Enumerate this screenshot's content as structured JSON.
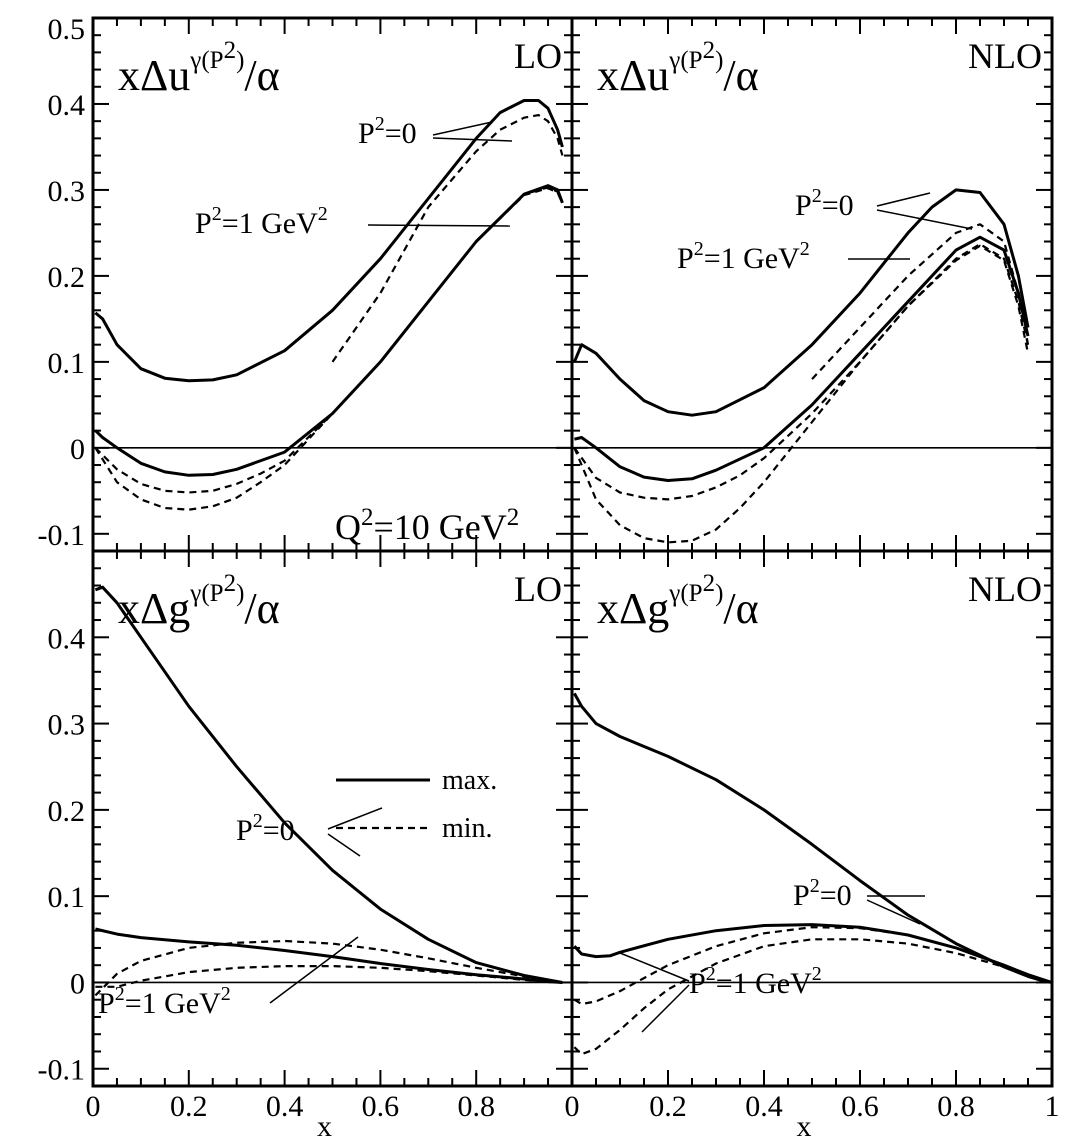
{
  "chart_data": [
    {
      "panel": "top-left",
      "type": "line",
      "title": {
        "base": "xΔu",
        "sup": "γ(P",
        "sup2": "2",
        "supclose": ")",
        "tail": "/α"
      },
      "order_label": "LO",
      "extra_label": {
        "base": "Q",
        "sup": "2",
        "tail": "=10 GeV",
        "sup2": "2"
      },
      "ylim": [
        -0.12,
        0.5
      ],
      "xlim": [
        0,
        1
      ],
      "yticks": [
        "0.5",
        "0.4",
        "0.3",
        "0.2",
        "0.1",
        "0",
        "-0.1"
      ],
      "annotations": [
        {
          "text": "P",
          "sup": "2",
          "tail": "=0",
          "sup2": ""
        },
        {
          "text": "P",
          "sup": "2",
          "tail": "=1 GeV",
          "sup2": "2"
        }
      ],
      "series": [
        {
          "style": "solid",
          "x": [
            0.005,
            0.02,
            0.05,
            0.1,
            0.15,
            0.2,
            0.25,
            0.3,
            0.4,
            0.5,
            0.6,
            0.7,
            0.8,
            0.85,
            0.9,
            0.93,
            0.95,
            0.97,
            0.98
          ],
          "y": [
            0.157,
            0.15,
            0.12,
            0.092,
            0.081,
            0.078,
            0.079,
            0.085,
            0.113,
            0.16,
            0.22,
            0.29,
            0.36,
            0.39,
            0.404,
            0.404,
            0.395,
            0.37,
            0.35
          ]
        },
        {
          "style": "dashed",
          "x": [
            0.5,
            0.6,
            0.65,
            0.7,
            0.8,
            0.85,
            0.9,
            0.93,
            0.95,
            0.97,
            0.98
          ],
          "y": [
            0.1,
            0.18,
            0.23,
            0.28,
            0.345,
            0.37,
            0.384,
            0.387,
            0.38,
            0.36,
            0.34
          ]
        },
        {
          "style": "solid",
          "x": [
            0.005,
            0.02,
            0.05,
            0.1,
            0.15,
            0.2,
            0.25,
            0.3,
            0.4,
            0.5,
            0.6,
            0.7,
            0.8,
            0.9,
            0.95,
            0.97,
            0.98
          ],
          "y": [
            0.02,
            0.012,
            0.0,
            -0.018,
            -0.028,
            -0.032,
            -0.031,
            -0.025,
            -0.005,
            0.04,
            0.1,
            0.17,
            0.24,
            0.295,
            0.305,
            0.3,
            0.285
          ]
        },
        {
          "style": "dashed",
          "x": [
            0.005,
            0.05,
            0.1,
            0.15,
            0.2,
            0.25,
            0.3,
            0.35,
            0.4,
            0.5,
            0.6,
            0.7,
            0.8,
            0.9,
            0.95,
            0.97,
            0.98
          ],
          "y": [
            0.0,
            -0.025,
            -0.042,
            -0.05,
            -0.052,
            -0.05,
            -0.042,
            -0.03,
            -0.015,
            0.04,
            0.1,
            0.17,
            0.24,
            0.295,
            0.303,
            0.298,
            0.285
          ]
        },
        {
          "style": "dashed",
          "x": [
            0.005,
            0.05,
            0.1,
            0.15,
            0.2,
            0.25,
            0.3,
            0.35,
            0.4,
            0.5,
            0.6,
            0.7,
            0.8,
            0.9,
            0.95,
            0.97,
            0.98
          ],
          "y": [
            0.0,
            -0.04,
            -0.06,
            -0.07,
            -0.072,
            -0.068,
            -0.058,
            -0.04,
            -0.02,
            0.04,
            0.1,
            0.17,
            0.24,
            0.294,
            0.302,
            0.297,
            0.284
          ]
        }
      ]
    },
    {
      "panel": "top-right",
      "type": "line",
      "title": {
        "base": "xΔu",
        "sup": "γ(P",
        "sup2": "2",
        "supclose": ")",
        "tail": "/α"
      },
      "order_label": "NLO",
      "ylim": [
        -0.12,
        0.5
      ],
      "xlim": [
        0,
        1
      ],
      "annotations": [
        {
          "text": "P",
          "sup": "2",
          "tail": "=0",
          "sup2": ""
        },
        {
          "text": "P",
          "sup": "2",
          "tail": "=1 GeV",
          "sup2": "2"
        }
      ],
      "series": [
        {
          "style": "solid",
          "x": [
            0.005,
            0.02,
            0.05,
            0.1,
            0.15,
            0.2,
            0.25,
            0.3,
            0.4,
            0.5,
            0.6,
            0.7,
            0.75,
            0.8,
            0.85,
            0.9,
            0.93,
            0.95
          ],
          "y": [
            0.1,
            0.12,
            0.11,
            0.08,
            0.055,
            0.042,
            0.038,
            0.042,
            0.07,
            0.12,
            0.18,
            0.25,
            0.28,
            0.3,
            0.297,
            0.26,
            0.2,
            0.14
          ]
        },
        {
          "style": "dashed",
          "x": [
            0.5,
            0.6,
            0.7,
            0.8,
            0.85,
            0.9,
            0.93,
            0.95
          ],
          "y": [
            0.08,
            0.14,
            0.2,
            0.25,
            0.26,
            0.24,
            0.18,
            0.12
          ]
        },
        {
          "style": "solid",
          "x": [
            0.005,
            0.02,
            0.05,
            0.1,
            0.15,
            0.2,
            0.25,
            0.3,
            0.4,
            0.5,
            0.6,
            0.7,
            0.8,
            0.85,
            0.9,
            0.93,
            0.95
          ],
          "y": [
            0.01,
            0.012,
            0.0,
            -0.022,
            -0.034,
            -0.038,
            -0.036,
            -0.026,
            0.0,
            0.05,
            0.11,
            0.17,
            0.23,
            0.245,
            0.23,
            0.18,
            0.13
          ]
        },
        {
          "style": "dashed",
          "x": [
            0.005,
            0.05,
            0.1,
            0.15,
            0.2,
            0.25,
            0.3,
            0.35,
            0.4,
            0.5,
            0.6,
            0.7,
            0.8,
            0.85,
            0.9,
            0.93,
            0.95
          ],
          "y": [
            0.0,
            -0.035,
            -0.052,
            -0.058,
            -0.06,
            -0.056,
            -0.046,
            -0.032,
            -0.012,
            0.04,
            0.1,
            0.165,
            0.22,
            0.237,
            0.22,
            0.17,
            0.12
          ]
        },
        {
          "style": "dashed",
          "x": [
            0.005,
            0.05,
            0.1,
            0.15,
            0.2,
            0.25,
            0.3,
            0.35,
            0.4,
            0.5,
            0.6,
            0.7,
            0.8,
            0.85,
            0.9,
            0.93,
            0.95
          ],
          "y": [
            0.0,
            -0.06,
            -0.09,
            -0.105,
            -0.11,
            -0.108,
            -0.095,
            -0.07,
            -0.04,
            0.03,
            0.1,
            0.165,
            0.218,
            0.235,
            0.218,
            0.165,
            0.11
          ]
        }
      ]
    },
    {
      "panel": "bottom-left",
      "type": "line",
      "title": {
        "base": "xΔg",
        "sup": "γ(P",
        "sup2": "2",
        "supclose": ")",
        "tail": "/α"
      },
      "order_label": "LO",
      "ylim": [
        -0.12,
        0.5
      ],
      "xlim": [
        0,
        1
      ],
      "yticks": [
        "0.4",
        "0.3",
        "0.2",
        "0.1",
        "0",
        "-0.1"
      ],
      "xticks": [
        "0",
        "0.2",
        "0.4",
        "0.6",
        "0.8"
      ],
      "xlabel": "x",
      "legend": [
        {
          "style": "solid",
          "label": "max."
        },
        {
          "style": "dashed",
          "label": "min."
        }
      ],
      "annotations": [
        {
          "text": "P",
          "sup": "2",
          "tail": "=0",
          "sup2": ""
        },
        {
          "text": "P",
          "sup": "2",
          "tail": "=1 GeV",
          "sup2": "2"
        }
      ],
      "series": [
        {
          "style": "solid",
          "x": [
            0.005,
            0.02,
            0.05,
            0.1,
            0.2,
            0.3,
            0.4,
            0.5,
            0.6,
            0.7,
            0.8,
            0.9,
            0.95,
            0.98
          ],
          "y": [
            0.455,
            0.458,
            0.44,
            0.4,
            0.32,
            0.25,
            0.185,
            0.13,
            0.085,
            0.05,
            0.023,
            0.008,
            0.003,
            0.0
          ]
        },
        {
          "style": "solid",
          "x": [
            0.005,
            0.05,
            0.1,
            0.2,
            0.3,
            0.4,
            0.5,
            0.6,
            0.7,
            0.8,
            0.9,
            0.95,
            0.98
          ],
          "y": [
            0.062,
            0.056,
            0.052,
            0.047,
            0.043,
            0.037,
            0.03,
            0.022,
            0.015,
            0.009,
            0.004,
            0.001,
            0.0
          ]
        },
        {
          "style": "dashed",
          "x": [
            0.005,
            0.05,
            0.1,
            0.2,
            0.3,
            0.4,
            0.5,
            0.6,
            0.7,
            0.8,
            0.9,
            0.95,
            0.98
          ],
          "y": [
            -0.015,
            0.01,
            0.025,
            0.04,
            0.046,
            0.048,
            0.045,
            0.038,
            0.028,
            0.017,
            0.007,
            0.002,
            0.0
          ]
        },
        {
          "style": "dashed",
          "x": [
            0.005,
            0.05,
            0.1,
            0.2,
            0.3,
            0.4,
            0.5,
            0.6,
            0.7,
            0.8,
            0.9,
            0.95,
            0.98
          ],
          "y": [
            -0.005,
            -0.005,
            0.002,
            0.012,
            0.017,
            0.019,
            0.019,
            0.017,
            0.013,
            0.008,
            0.003,
            0.001,
            0.0
          ]
        }
      ]
    },
    {
      "panel": "bottom-right",
      "type": "line",
      "title": {
        "base": "xΔg",
        "sup": "γ(P",
        "sup2": "2",
        "supclose": ")",
        "tail": "/α"
      },
      "order_label": "NLO",
      "ylim": [
        -0.12,
        0.5
      ],
      "xlim": [
        0,
        1
      ],
      "xticks": [
        "0",
        "0.2",
        "0.4",
        "0.6",
        "0.8",
        "1"
      ],
      "xlabel": "x",
      "annotations": [
        {
          "text": "P",
          "sup": "2",
          "tail": "=0",
          "sup2": ""
        },
        {
          "text": "P",
          "sup": "2",
          "tail": "=1 GeV",
          "sup2": "2"
        }
      ],
      "series": [
        {
          "style": "solid",
          "x": [
            0.005,
            0.02,
            0.05,
            0.1,
            0.2,
            0.3,
            0.4,
            0.5,
            0.6,
            0.7,
            0.8,
            0.9,
            0.95,
            0.98,
            1.0
          ],
          "y": [
            0.335,
            0.32,
            0.3,
            0.285,
            0.262,
            0.235,
            0.2,
            0.16,
            0.118,
            0.078,
            0.045,
            0.018,
            0.007,
            0.002,
            0.0
          ]
        },
        {
          "style": "solid",
          "x": [
            0.005,
            0.02,
            0.05,
            0.08,
            0.1,
            0.2,
            0.3,
            0.4,
            0.5,
            0.6,
            0.7,
            0.8,
            0.9,
            0.95,
            1.0
          ],
          "y": [
            0.042,
            0.033,
            0.03,
            0.031,
            0.035,
            0.05,
            0.06,
            0.066,
            0.067,
            0.064,
            0.055,
            0.04,
            0.02,
            0.009,
            0.0
          ]
        },
        {
          "style": "dashed",
          "x": [
            0.005,
            0.02,
            0.05,
            0.1,
            0.15,
            0.2,
            0.3,
            0.4,
            0.5,
            0.6,
            0.7,
            0.8,
            0.9,
            0.95,
            1.0
          ],
          "y": [
            -0.02,
            -0.025,
            -0.022,
            -0.01,
            0.005,
            0.02,
            0.042,
            0.057,
            0.064,
            0.063,
            0.055,
            0.04,
            0.02,
            0.009,
            0.0
          ]
        },
        {
          "style": "dashed",
          "x": [
            0.005,
            0.02,
            0.05,
            0.1,
            0.15,
            0.2,
            0.3,
            0.4,
            0.5,
            0.6,
            0.7,
            0.8,
            0.9,
            0.95,
            1.0
          ],
          "y": [
            -0.075,
            -0.083,
            -0.077,
            -0.055,
            -0.03,
            -0.008,
            0.022,
            0.042,
            0.05,
            0.05,
            0.045,
            0.034,
            0.018,
            0.008,
            0.0
          ]
        }
      ]
    }
  ]
}
